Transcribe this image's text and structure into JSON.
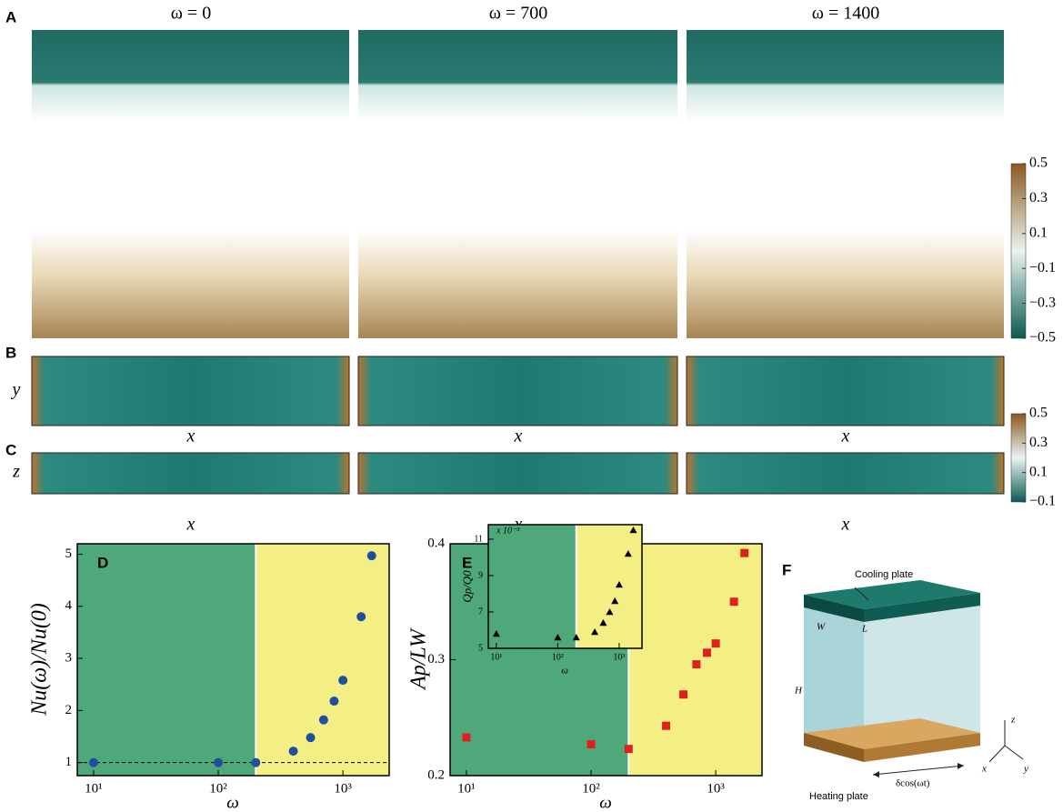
{
  "panel_a": {
    "label": "A",
    "columns": [
      "ω = 0",
      "ω = 700",
      "ω = 1400"
    ]
  },
  "panel_b": {
    "label": "B",
    "y_label": "y",
    "x_label": "x"
  },
  "panel_c": {
    "label": "C",
    "y_label": "z",
    "x_label": "x"
  },
  "panel_f": {
    "label": "F",
    "cooling": "Cooling plate",
    "w": "W",
    "l": "L",
    "h": "H",
    "heating": "Heating plate",
    "motion": "δcos(ωt)",
    "axis_z": "z",
    "axis_x": "x",
    "axis_y": "y"
  },
  "chart_data": [
    {
      "type": "scatter",
      "label": "D",
      "xlabel": "ω",
      "ylabel": "Nu(ω)/Nu(0)",
      "marker": "circle",
      "color": "#1f4fa0",
      "log_x": true,
      "xlim": [
        7.4,
        2350
      ],
      "ylim": [
        0.75,
        5.2
      ],
      "xticks": [
        {
          "value": 10,
          "label": "10¹"
        },
        {
          "value": 100,
          "label": "10²"
        },
        {
          "value": 1000,
          "label": "10³"
        }
      ],
      "yticks": [
        1,
        2,
        3,
        4,
        5
      ],
      "split": 200,
      "region_colors": [
        "#4fa87a",
        "#f4ef84"
      ],
      "reference_line": 1,
      "x": [
        10,
        100,
        200,
        400,
        550,
        700,
        850,
        1000,
        1400,
        1700
      ],
      "values": [
        1,
        1,
        1,
        1.22,
        1.48,
        1.82,
        2.18,
        2.58,
        3.8,
        4.97
      ]
    },
    {
      "type": "scatter",
      "label": "E",
      "xlabel": "ω",
      "ylabel": "Ap/LW",
      "marker": "square",
      "color": "#e0201c",
      "log_x": true,
      "xlim": [
        7.4,
        2350
      ],
      "ylim": [
        0.2,
        0.4
      ],
      "xticks": [
        {
          "value": 10,
          "label": "10¹"
        },
        {
          "value": 100,
          "label": "10²"
        },
        {
          "value": 1000,
          "label": "10³"
        }
      ],
      "yticks": [
        0.2,
        0.3,
        0.4
      ],
      "split": 200,
      "region_colors": [
        "#4fa87a",
        "#f4ef84"
      ],
      "x": [
        10,
        100,
        200,
        400,
        550,
        700,
        850,
        1000,
        1400,
        1700
      ],
      "values": [
        0.233,
        0.227,
        0.223,
        0.243,
        0.27,
        0.296,
        0.306,
        0.314,
        0.35,
        0.392
      ]
    },
    {
      "type": "scatter",
      "xlabel": "ω",
      "ylabel": "Qp/Q0",
      "scale_label": "x 10⁻³",
      "marker": "triangle",
      "color": "#000000",
      "log_x": true,
      "xlim": [
        7.4,
        2350
      ],
      "ylim": [
        5,
        11.8
      ],
      "xticks": [
        {
          "value": 10,
          "label": "10¹"
        },
        {
          "value": 100,
          "label": "10²"
        },
        {
          "value": 1000,
          "label": "10³"
        }
      ],
      "yticks": [
        5,
        7,
        9,
        11
      ],
      "split": 200,
      "region_colors": [
        "#4fa87a",
        "#f4ef84"
      ],
      "x": [
        10,
        100,
        200,
        400,
        550,
        700,
        850,
        1000,
        1400,
        1700
      ],
      "values": [
        5.8,
        5.6,
        5.6,
        5.9,
        6.4,
        7.0,
        7.6,
        8.5,
        10.2,
        11.5
      ]
    },
    {
      "type": "colorbar",
      "ylim": [
        -0.5,
        0.5
      ],
      "colors": [
        "#0b5a52",
        "#eaf4f1",
        "#8a5a1e"
      ],
      "yticks": [
        0.5,
        0.3,
        0.1,
        {
          "value": -0.1,
          "label": "−0.1"
        },
        {
          "value": -0.3,
          "label": "−0.3"
        },
        {
          "value": -0.5,
          "label": "−0.5"
        }
      ]
    },
    {
      "type": "colorbar",
      "ylim": [
        -0.1,
        0.5
      ],
      "colors": [
        "#0b5a52",
        "#eaf4f1",
        "#8a5a1e"
      ],
      "yticks": [
        0.5,
        0.3,
        0.1,
        {
          "value": -0.1,
          "label": "−0.1"
        }
      ]
    }
  ]
}
